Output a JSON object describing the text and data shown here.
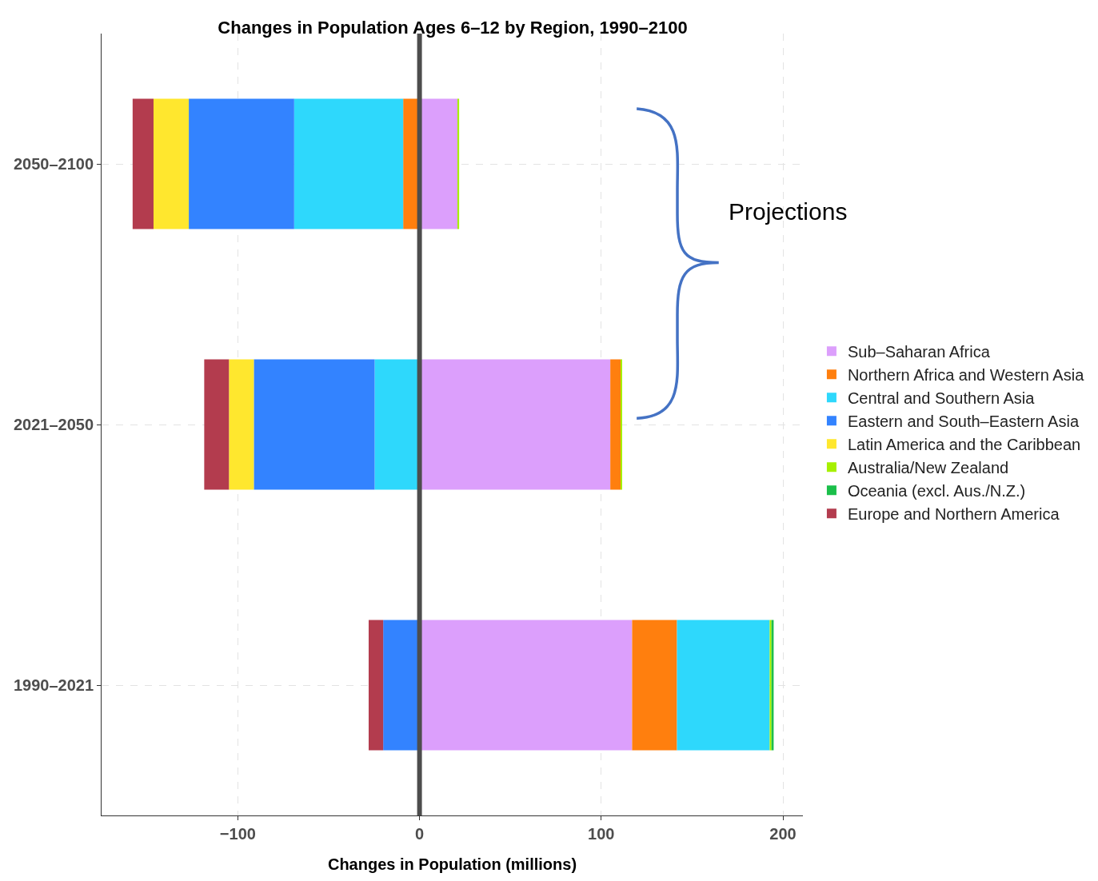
{
  "chart_data": {
    "type": "bar",
    "orientation": "horizontal",
    "stacked": true,
    "title": "Changes in Population Ages 6–12 by Region, 1990–2100",
    "xlabel": "Changes in Population (millions)",
    "categories": [
      "2050–2100",
      "2021–2050",
      "1990–2021"
    ],
    "series": [
      {
        "name": "Sub–Saharan Africa",
        "color": "#dc9ffc",
        "values": [
          21,
          105,
          117
        ]
      },
      {
        "name": "Northern Africa and Western Asia",
        "color": "#ff7f0e",
        "values": [
          -9,
          5.7,
          24.7
        ]
      },
      {
        "name": "Central and Southern Asia",
        "color": "#2ed8fc",
        "values": [
          -60,
          -24.7,
          51
        ]
      },
      {
        "name": "Eastern and South–Eastern Asia",
        "color": "#3383ff",
        "values": [
          -58,
          -66.5,
          -20
        ]
      },
      {
        "name": "Latin America and the Caribbean",
        "color": "#ffe72e",
        "values": [
          -19.4,
          -13.7,
          0
        ]
      },
      {
        "name": "Australia/New Zealand",
        "color": "#a6f000",
        "values": [
          0.8,
          0.5,
          1
        ]
      },
      {
        "name": "Oceania (excl. Aus./N.Z.)",
        "color": "#1bbf4a",
        "values": [
          0,
          0,
          1.2
        ]
      },
      {
        "name": "Europe and Northern America",
        "color": "#b33c4e",
        "values": [
          -11.5,
          -13.6,
          -8
        ]
      }
    ],
    "xlim": [
      -175,
      211
    ],
    "xticks": [
      {
        "value": -100,
        "label": "−100"
      },
      0,
      100,
      200
    ],
    "grid": true,
    "legend": "right",
    "ref_lines": [
      {
        "axis": "x",
        "value": 0,
        "color": "#4d4d4d"
      }
    ],
    "annotations": [
      "Projections"
    ]
  }
}
